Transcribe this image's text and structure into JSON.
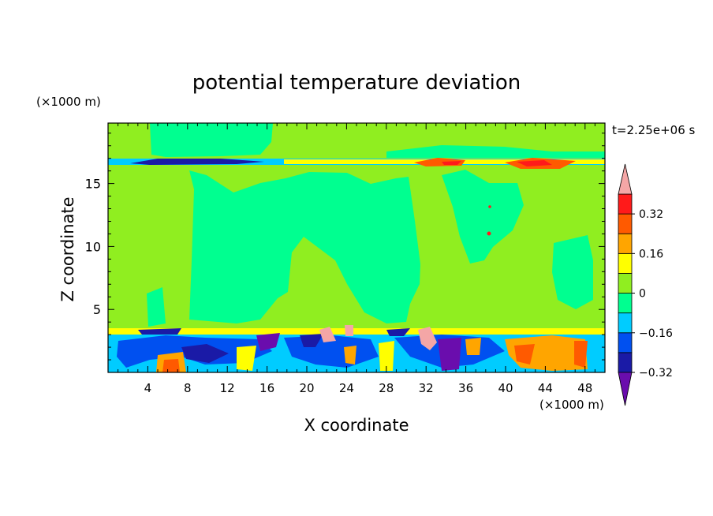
{
  "chart_data": {
    "type": "heatmap",
    "title": "potential temperature deviation",
    "xlabel": "X coordinate",
    "ylabel": "Z coordinate",
    "x_unit": "(×1000 m)",
    "y_unit": "(×1000 m)",
    "time_label": "t=2.25e+06 s",
    "xlim": [
      0,
      50
    ],
    "ylim": [
      0,
      19.8
    ],
    "x_ticks": [
      4,
      8,
      12,
      16,
      20,
      24,
      28,
      32,
      36,
      40,
      44,
      48
    ],
    "y_ticks": [
      5,
      10,
      15
    ],
    "colorbar": {
      "levels": [
        -0.4,
        -0.32,
        -0.24,
        -0.16,
        -0.08,
        0,
        0.08,
        0.16,
        0.24,
        0.32,
        0.4
      ],
      "tick_labels": [
        "0.32",
        "0.16",
        "0",
        "−0.16",
        "−0.32"
      ],
      "tick_values": [
        0.32,
        0.16,
        0,
        -0.16,
        -0.32
      ],
      "colors": [
        "#6a0dad",
        "#1a1aa6",
        "#0050f0",
        "#00ccff",
        "#00ff90",
        "#90ee20",
        "#ffff00",
        "#ffa500",
        "#ff5a00",
        "#ff1a1a",
        "#f4a6a6"
      ],
      "extend": "both"
    },
    "background_level": 0,
    "regions": [
      {
        "desc": "mid-troposphere warm plume",
        "x": [
          8,
          31
        ],
        "z": [
          4,
          15
        ],
        "value": 0.04
      },
      {
        "desc": "upper warm region",
        "x": [
          32,
          40
        ],
        "z": [
          10,
          16.5
        ],
        "value": 0.04
      },
      {
        "desc": "upper-left warm patch",
        "x": [
          4,
          17
        ],
        "z": [
          17.2,
          19.8
        ],
        "value": 0.04
      },
      {
        "desc": "right warm column",
        "x": [
          45,
          50
        ],
        "z": [
          6,
          10.5
        ],
        "value": 0.04
      },
      {
        "desc": "tropopause cold band (left)",
        "x": [
          2,
          16
        ],
        "z": [
          16.6,
          17.1
        ],
        "value": -0.3
      },
      {
        "desc": "tropopause warm band (right)",
        "x": [
          30,
          50
        ],
        "z": [
          16.5,
          17.2
        ],
        "value": 0.3
      },
      {
        "desc": "boundary layer mixed band",
        "x": [
          0,
          50
        ],
        "z": [
          0,
          3.6
        ],
        "value": -0.2
      },
      {
        "desc": "surface warm cell",
        "x": [
          4.5,
          7.5
        ],
        "z": [
          0,
          2
        ],
        "value": 0.34
      },
      {
        "desc": "surface warm cell",
        "x": [
          40,
          47
        ],
        "z": [
          0.3,
          3
        ],
        "value": 0.28
      },
      {
        "desc": "near-surface cold cell",
        "x": [
          31,
          35
        ],
        "z": [
          0,
          3.2
        ],
        "value": -0.36
      }
    ]
  }
}
